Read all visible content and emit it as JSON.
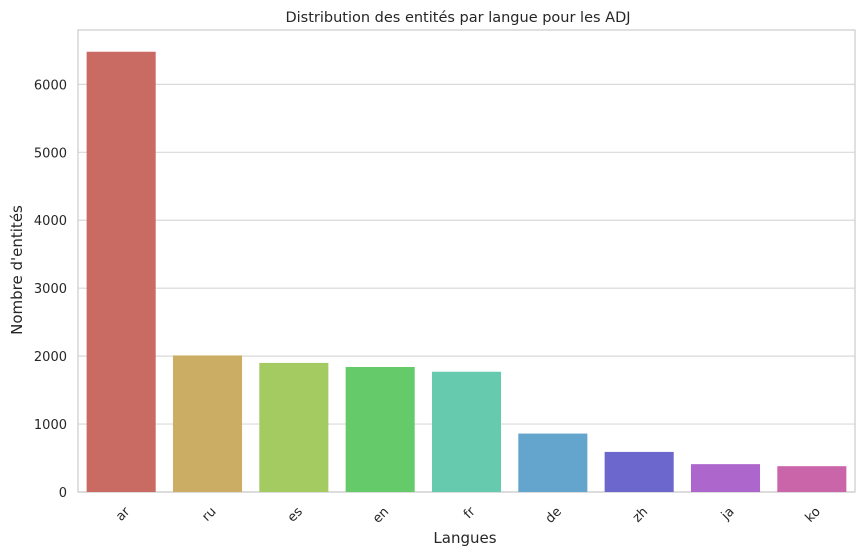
{
  "chart_data": {
    "type": "bar",
    "title": "Distribution des entités par langue pour les ADJ",
    "xlabel": "Langues",
    "ylabel": "Nombre d'entités",
    "categories": [
      "ar",
      "ru",
      "es",
      "en",
      "fr",
      "de",
      "zh",
      "ja",
      "ko"
    ],
    "values": [
      6480,
      2010,
      1900,
      1840,
      1770,
      860,
      590,
      410,
      380
    ],
    "colors": [
      "#c96b63",
      "#cbae63",
      "#a4ca62",
      "#64ca6a",
      "#66caae",
      "#63a5cc",
      "#6c67cc",
      "#ad67cc",
      "#cb65a9"
    ],
    "ylim": [
      0,
      6800
    ],
    "yticks": [
      0,
      1000,
      2000,
      3000,
      4000,
      5000,
      6000
    ],
    "ytick_labels": [
      "0",
      "1000",
      "2000",
      "3000",
      "4000",
      "5000",
      "6000"
    ],
    "grid": "horizontal",
    "legend": "none"
  }
}
